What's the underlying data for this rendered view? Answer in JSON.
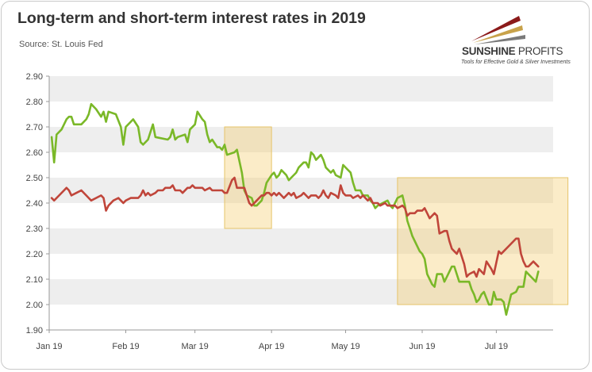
{
  "title": "Long-term and short-term interest rates in 2019",
  "source": "Source: St. Louis Fed",
  "logo": {
    "name_bold": "SUNSHINE",
    "name_light": "PROFITS",
    "tagline": "Tools for Effective Gold & Silver Investments",
    "colors": [
      "#8b1a1a",
      "#c8a24a",
      "#7a7a7a"
    ]
  },
  "chart_data": {
    "type": "line",
    "title": "Long-term and short-term interest rates in 2019",
    "xlabel": "",
    "ylabel": "",
    "ylim": [
      1.9,
      2.9
    ],
    "yticks": [
      "2.90",
      "2.80",
      "2.70",
      "2.60",
      "2.50",
      "2.40",
      "2.30",
      "2.20",
      "2.10",
      "2.00",
      "1.90"
    ],
    "xticks": [
      "Jan 19",
      "Feb 19",
      "Mar 19",
      "Apr 19",
      "May 19",
      "Jun 19",
      "Jul 19"
    ],
    "grid": "horizontal bands",
    "legend": "none",
    "highlight_regions": [
      {
        "x_from": 71,
        "x_to": 90,
        "y_from": 2.3,
        "y_to": 2.7
      },
      {
        "x_from": 141,
        "x_to": 210,
        "y_from": 2.0,
        "y_to": 2.5
      }
    ],
    "series": [
      {
        "color": "#7ab828",
        "points": [
          [
            1,
            2.66
          ],
          [
            2,
            2.56
          ],
          [
            3,
            2.67
          ],
          [
            5,
            2.69
          ],
          [
            7,
            2.73
          ],
          [
            8,
            2.74
          ],
          [
            9,
            2.74
          ],
          [
            10,
            2.71
          ],
          [
            13,
            2.71
          ],
          [
            15,
            2.73
          ],
          [
            16,
            2.75
          ],
          [
            17,
            2.79
          ],
          [
            19,
            2.77
          ],
          [
            21,
            2.74
          ],
          [
            22,
            2.76
          ],
          [
            23,
            2.72
          ],
          [
            24,
            2.76
          ],
          [
            27,
            2.75
          ],
          [
            29,
            2.7
          ],
          [
            30,
            2.63
          ],
          [
            31,
            2.7
          ],
          [
            33,
            2.72
          ],
          [
            34,
            2.73
          ],
          [
            36,
            2.7
          ],
          [
            37,
            2.64
          ],
          [
            38,
            2.63
          ],
          [
            40,
            2.65
          ],
          [
            41,
            2.68
          ],
          [
            42,
            2.71
          ],
          [
            43,
            2.66
          ],
          [
            48,
            2.65
          ],
          [
            49,
            2.66
          ],
          [
            50,
            2.69
          ],
          [
            51,
            2.65
          ],
          [
            52,
            2.66
          ],
          [
            55,
            2.67
          ],
          [
            56,
            2.64
          ],
          [
            57,
            2.69
          ],
          [
            59,
            2.71
          ],
          [
            60,
            2.76
          ],
          [
            62,
            2.73
          ],
          [
            63,
            2.72
          ],
          [
            64,
            2.67
          ],
          [
            65,
            2.64
          ],
          [
            66,
            2.65
          ],
          [
            68,
            2.62
          ],
          [
            69,
            2.62
          ],
          [
            70,
            2.61
          ],
          [
            71,
            2.63
          ],
          [
            72,
            2.59
          ],
          [
            75,
            2.6
          ],
          [
            76,
            2.61
          ],
          [
            78,
            2.52
          ],
          [
            79,
            2.45
          ],
          [
            80,
            2.43
          ],
          [
            82,
            2.42
          ],
          [
            83,
            2.39
          ],
          [
            84,
            2.39
          ],
          [
            86,
            2.41
          ],
          [
            87,
            2.44
          ],
          [
            88,
            2.48
          ],
          [
            90,
            2.51
          ],
          [
            91,
            2.52
          ],
          [
            92,
            2.5
          ],
          [
            93,
            2.51
          ],
          [
            94,
            2.53
          ],
          [
            96,
            2.51
          ],
          [
            97,
            2.49
          ],
          [
            98,
            2.5
          ],
          [
            100,
            2.52
          ],
          [
            101,
            2.54
          ],
          [
            103,
            2.56
          ],
          [
            104,
            2.56
          ],
          [
            105,
            2.54
          ],
          [
            106,
            2.6
          ],
          [
            107,
            2.59
          ],
          [
            108,
            2.57
          ],
          [
            110,
            2.59
          ],
          [
            111,
            2.57
          ],
          [
            112,
            2.54
          ],
          [
            114,
            2.52
          ],
          [
            115,
            2.53
          ],
          [
            116,
            2.51
          ],
          [
            118,
            2.5
          ],
          [
            119,
            2.55
          ],
          [
            121,
            2.53
          ],
          [
            122,
            2.52
          ],
          [
            123,
            2.48
          ],
          [
            124,
            2.45
          ],
          [
            126,
            2.45
          ],
          [
            127,
            2.43
          ],
          [
            129,
            2.43
          ],
          [
            130,
            2.41
          ],
          [
            131,
            2.4
          ],
          [
            132,
            2.38
          ],
          [
            133,
            2.39
          ],
          [
            135,
            2.4
          ],
          [
            137,
            2.41
          ],
          [
            138,
            2.39
          ],
          [
            139,
            2.38
          ],
          [
            140,
            2.4
          ],
          [
            141,
            2.42
          ],
          [
            143,
            2.43
          ],
          [
            144,
            2.39
          ],
          [
            145,
            2.33
          ],
          [
            146,
            2.3
          ],
          [
            147,
            2.27
          ],
          [
            148,
            2.25
          ],
          [
            149,
            2.23
          ],
          [
            150,
            2.21
          ],
          [
            151,
            2.2
          ],
          [
            152,
            2.18
          ],
          [
            153,
            2.12
          ],
          [
            154,
            2.1
          ],
          [
            155,
            2.08
          ],
          [
            156,
            2.07
          ],
          [
            157,
            2.12
          ],
          [
            159,
            2.12
          ],
          [
            160,
            2.09
          ],
          [
            161,
            2.11
          ],
          [
            163,
            2.15
          ],
          [
            164,
            2.15
          ],
          [
            165,
            2.12
          ],
          [
            166,
            2.09
          ],
          [
            168,
            2.09
          ],
          [
            170,
            2.09
          ],
          [
            171,
            2.06
          ],
          [
            172,
            2.04
          ],
          [
            173,
            2.01
          ],
          [
            174,
            2.02
          ],
          [
            175,
            2.04
          ],
          [
            176,
            2.05
          ],
          [
            178,
            2.0
          ],
          [
            179,
            2.0
          ],
          [
            180,
            2.05
          ],
          [
            181,
            2.02
          ],
          [
            183,
            2.02
          ],
          [
            184,
            2.01
          ],
          [
            185,
            1.96
          ],
          [
            186,
            2.0
          ],
          [
            187,
            2.04
          ],
          [
            189,
            2.05
          ],
          [
            190,
            2.07
          ],
          [
            192,
            2.07
          ],
          [
            193,
            2.13
          ],
          [
            194,
            2.12
          ],
          [
            196,
            2.1
          ],
          [
            197,
            2.09
          ],
          [
            198,
            2.13
          ]
        ]
      },
      {
        "color": "#c0453a",
        "points": [
          [
            1,
            2.42
          ],
          [
            2,
            2.41
          ],
          [
            4,
            2.43
          ],
          [
            6,
            2.45
          ],
          [
            7,
            2.46
          ],
          [
            8,
            2.45
          ],
          [
            9,
            2.43
          ],
          [
            11,
            2.44
          ],
          [
            13,
            2.45
          ],
          [
            15,
            2.43
          ],
          [
            16,
            2.42
          ],
          [
            17,
            2.41
          ],
          [
            19,
            2.42
          ],
          [
            21,
            2.43
          ],
          [
            22,
            2.42
          ],
          [
            23,
            2.37
          ],
          [
            24,
            2.39
          ],
          [
            26,
            2.41
          ],
          [
            28,
            2.42
          ],
          [
            29,
            2.41
          ],
          [
            30,
            2.4
          ],
          [
            31,
            2.41
          ],
          [
            33,
            2.42
          ],
          [
            36,
            2.42
          ],
          [
            37,
            2.43
          ],
          [
            38,
            2.45
          ],
          [
            39,
            2.43
          ],
          [
            40,
            2.44
          ],
          [
            41,
            2.43
          ],
          [
            43,
            2.44
          ],
          [
            44,
            2.45
          ],
          [
            46,
            2.45
          ],
          [
            47,
            2.46
          ],
          [
            49,
            2.46
          ],
          [
            50,
            2.47
          ],
          [
            51,
            2.45
          ],
          [
            53,
            2.45
          ],
          [
            54,
            2.44
          ],
          [
            56,
            2.46
          ],
          [
            57,
            2.46
          ],
          [
            58,
            2.47
          ],
          [
            59,
            2.46
          ],
          [
            62,
            2.46
          ],
          [
            63,
            2.45
          ],
          [
            65,
            2.46
          ],
          [
            66,
            2.45
          ],
          [
            69,
            2.45
          ],
          [
            70,
            2.45
          ],
          [
            71,
            2.44
          ],
          [
            72,
            2.44
          ],
          [
            74,
            2.49
          ],
          [
            75,
            2.5
          ],
          [
            76,
            2.46
          ],
          [
            79,
            2.46
          ],
          [
            80,
            2.43
          ],
          [
            81,
            2.4
          ],
          [
            82,
            2.39
          ],
          [
            83,
            2.4
          ],
          [
            84,
            2.41
          ],
          [
            86,
            2.43
          ],
          [
            87,
            2.43
          ],
          [
            88,
            2.44
          ],
          [
            89,
            2.44
          ],
          [
            90,
            2.43
          ],
          [
            91,
            2.44
          ],
          [
            92,
            2.43
          ],
          [
            93,
            2.44
          ],
          [
            94,
            2.43
          ],
          [
            95,
            2.42
          ],
          [
            97,
            2.44
          ],
          [
            98,
            2.43
          ],
          [
            99,
            2.44
          ],
          [
            100,
            2.42
          ],
          [
            102,
            2.43
          ],
          [
            103,
            2.44
          ],
          [
            104,
            2.43
          ],
          [
            105,
            2.42
          ],
          [
            106,
            2.43
          ],
          [
            108,
            2.43
          ],
          [
            109,
            2.42
          ],
          [
            110,
            2.43
          ],
          [
            111,
            2.45
          ],
          [
            112,
            2.43
          ],
          [
            113,
            2.42
          ],
          [
            114,
            2.44
          ],
          [
            116,
            2.43
          ],
          [
            117,
            2.42
          ],
          [
            118,
            2.47
          ],
          [
            119,
            2.44
          ],
          [
            120,
            2.43
          ],
          [
            122,
            2.43
          ],
          [
            123,
            2.42
          ],
          [
            125,
            2.43
          ],
          [
            126,
            2.42
          ],
          [
            127,
            2.43
          ],
          [
            129,
            2.41
          ],
          [
            130,
            2.42
          ],
          [
            131,
            2.4
          ],
          [
            133,
            2.4
          ],
          [
            134,
            2.39
          ],
          [
            136,
            2.4
          ],
          [
            137,
            2.39
          ],
          [
            140,
            2.39
          ],
          [
            141,
            2.38
          ],
          [
            143,
            2.39
          ],
          [
            144,
            2.38
          ],
          [
            145,
            2.35
          ],
          [
            146,
            2.36
          ],
          [
            148,
            2.36
          ],
          [
            149,
            2.37
          ],
          [
            151,
            2.37
          ],
          [
            152,
            2.38
          ],
          [
            153,
            2.36
          ],
          [
            154,
            2.34
          ],
          [
            155,
            2.35
          ],
          [
            156,
            2.36
          ],
          [
            157,
            2.35
          ],
          [
            158,
            2.28
          ],
          [
            160,
            2.29
          ],
          [
            161,
            2.29
          ],
          [
            162,
            2.25
          ],
          [
            163,
            2.22
          ],
          [
            164,
            2.21
          ],
          [
            165,
            2.2
          ],
          [
            166,
            2.22
          ],
          [
            167,
            2.19
          ],
          [
            168,
            2.16
          ],
          [
            169,
            2.11
          ],
          [
            170,
            2.12
          ],
          [
            172,
            2.13
          ],
          [
            173,
            2.11
          ],
          [
            174,
            2.14
          ],
          [
            175,
            2.13
          ],
          [
            176,
            2.12
          ],
          [
            177,
            2.17
          ],
          [
            179,
            2.14
          ],
          [
            180,
            2.12
          ],
          [
            182,
            2.21
          ],
          [
            183,
            2.2
          ],
          [
            184,
            2.21
          ],
          [
            186,
            2.23
          ],
          [
            188,
            2.25
          ],
          [
            189,
            2.26
          ],
          [
            190,
            2.26
          ],
          [
            191,
            2.2
          ],
          [
            192,
            2.17
          ],
          [
            193,
            2.15
          ],
          [
            194,
            2.15
          ],
          [
            195,
            2.16
          ],
          [
            196,
            2.17
          ],
          [
            197,
            2.16
          ],
          [
            198,
            2.15
          ]
        ]
      }
    ]
  }
}
